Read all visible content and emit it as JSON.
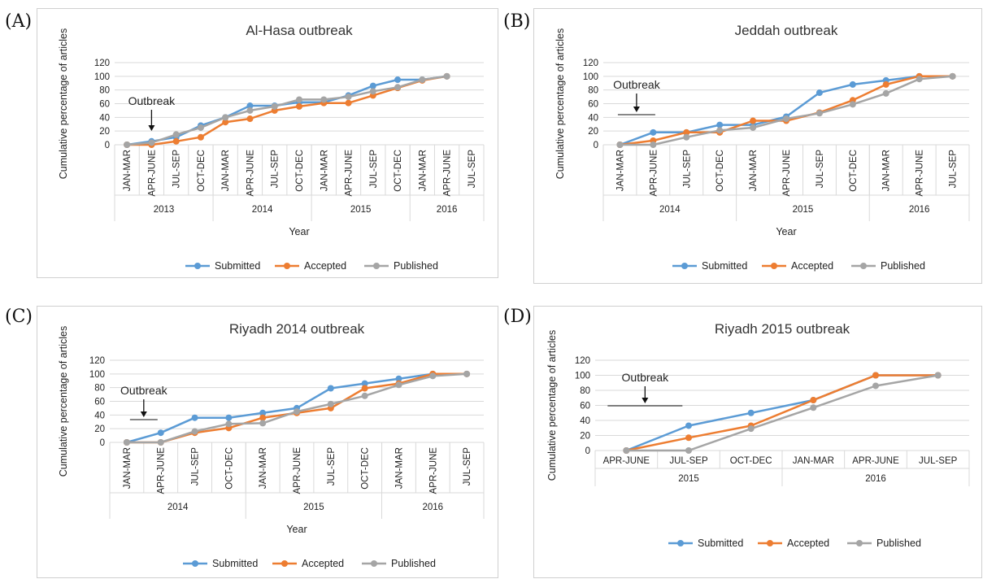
{
  "colors": {
    "Submitted": "#5b9bd5",
    "Accepted": "#ed7d31",
    "Published": "#a5a5a5"
  },
  "chart_data": [
    {
      "panel": "(A)",
      "type": "line",
      "title": "Al-Hasa outbreak",
      "ylabel": "Cumulative percentage of articles",
      "xlabel": "Year",
      "ylim": [
        0,
        120
      ],
      "yticks": [
        0,
        20,
        40,
        60,
        80,
        100,
        120
      ],
      "categories": [
        "JAN-MAR",
        "APR-JUNE",
        "JUL-SEP",
        "OCT-DEC",
        "JAN-MAR",
        "APR-JUNE",
        "JUL-SEP",
        "OCT-DEC",
        "JAN-MAR",
        "APR-JUNE",
        "JUL-SEP",
        "OCT-DEC",
        "JAN-MAR",
        "APR-JUNE",
        "JUL-SEP"
      ],
      "groups": [
        {
          "label": "2013",
          "count": 4
        },
        {
          "label": "2014",
          "count": 4
        },
        {
          "label": "2015",
          "count": 4
        },
        {
          "label": "2016",
          "count": 3
        }
      ],
      "annotation": "Outbreak",
      "annotation_at": 1,
      "series": [
        {
          "name": "Submitted",
          "values": [
            0,
            5,
            11,
            28,
            40,
            57,
            57,
            62,
            62,
            72,
            86,
            95,
            95,
            100,
            null
          ]
        },
        {
          "name": "Accepted",
          "values": [
            0,
            0,
            5,
            11,
            33,
            38,
            50,
            56,
            61,
            61,
            72,
            83,
            94,
            100,
            null
          ]
        },
        {
          "name": "Published",
          "values": [
            0,
            3,
            15,
            25,
            40,
            50,
            56,
            66,
            66,
            70,
            78,
            84,
            95,
            100,
            null
          ]
        }
      ]
    },
    {
      "panel": "(B)",
      "type": "line",
      "title": "Jeddah outbreak",
      "ylabel": "Cumulative percentage of articles",
      "xlabel": "Year",
      "ylim": [
        0,
        120
      ],
      "yticks": [
        0,
        20,
        40,
        60,
        80,
        100,
        120
      ],
      "categories": [
        "JAN-MAR",
        "APR-JUNE",
        "JUL-SEP",
        "OCT-DEC",
        "JAN-MAR",
        "APR-JUNE",
        "JUL-SEP",
        "OCT-DEC",
        "JAN-MAR",
        "APR-JUNE",
        "JUL-SEP"
      ],
      "groups": [
        {
          "label": "2014",
          "count": 4
        },
        {
          "label": "2015",
          "count": 4
        },
        {
          "label": "2016",
          "count": 3
        }
      ],
      "annotation": "Outbreak",
      "annotation_at": 0.5,
      "series": [
        {
          "name": "Submitted",
          "values": [
            0,
            18,
            18,
            29,
            29,
            41,
            76,
            88,
            94,
            100,
            100
          ]
        },
        {
          "name": "Accepted",
          "values": [
            0,
            6,
            18,
            18,
            35,
            35,
            47,
            65,
            88,
            100,
            100
          ]
        },
        {
          "name": "Published",
          "values": [
            0,
            0,
            11,
            21,
            25,
            38,
            46,
            59,
            75,
            96,
            100
          ]
        }
      ]
    },
    {
      "panel": "(C)",
      "type": "line",
      "title": "Riyadh 2014 outbreak",
      "ylabel": "Cumulative percentage of articles",
      "xlabel": "Year",
      "ylim": [
        0,
        120
      ],
      "yticks": [
        0,
        20,
        40,
        60,
        80,
        100,
        120
      ],
      "categories": [
        "JAN-MAR",
        "APR-JUNE",
        "JUL-SEP",
        "OCT-DEC",
        "JAN-MAR",
        "APR-JUNE",
        "JUL-SEP",
        "OCT-DEC",
        "JAN-MAR",
        "APR-JUNE",
        "JUL-SEP"
      ],
      "groups": [
        {
          "label": "2014",
          "count": 4
        },
        {
          "label": "2015",
          "count": 4
        },
        {
          "label": "2016",
          "count": 3
        }
      ],
      "annotation": "Outbreak",
      "annotation_at": 0.5,
      "series": [
        {
          "name": "Submitted",
          "values": [
            0,
            14,
            36,
            36,
            43,
            50,
            79,
            86,
            93,
            100,
            100
          ]
        },
        {
          "name": "Accepted",
          "values": [
            0,
            0,
            14,
            21,
            36,
            43,
            50,
            79,
            86,
            100,
            100
          ]
        },
        {
          "name": "Published",
          "values": [
            0,
            0,
            16,
            27,
            28,
            45,
            56,
            68,
            84,
            97,
            100
          ]
        }
      ]
    },
    {
      "panel": "(D)",
      "type": "line",
      "title": "Riyadh 2015 outbreak",
      "ylabel": "Cumulative percentage of articles",
      "xlabel": "",
      "ylim": [
        0,
        120
      ],
      "yticks": [
        0,
        20,
        40,
        60,
        80,
        100,
        120
      ],
      "categories": [
        "APR-JUNE",
        "JUL-SEP",
        "OCT-DEC",
        "JAN-MAR",
        "APR-JUNE",
        "JUL-SEP"
      ],
      "groups": [
        {
          "label": "2015",
          "count": 3
        },
        {
          "label": "2016",
          "count": 3
        }
      ],
      "annotation": "Outbreak",
      "annotation_at": 0.3,
      "series": [
        {
          "name": "Submitted",
          "values": [
            0,
            33,
            50,
            67,
            100,
            100
          ]
        },
        {
          "name": "Accepted",
          "values": [
            0,
            17,
            33,
            67,
            100,
            100
          ]
        },
        {
          "name": "Published",
          "values": [
            0,
            0,
            29,
            57,
            86,
            100
          ]
        }
      ]
    }
  ]
}
